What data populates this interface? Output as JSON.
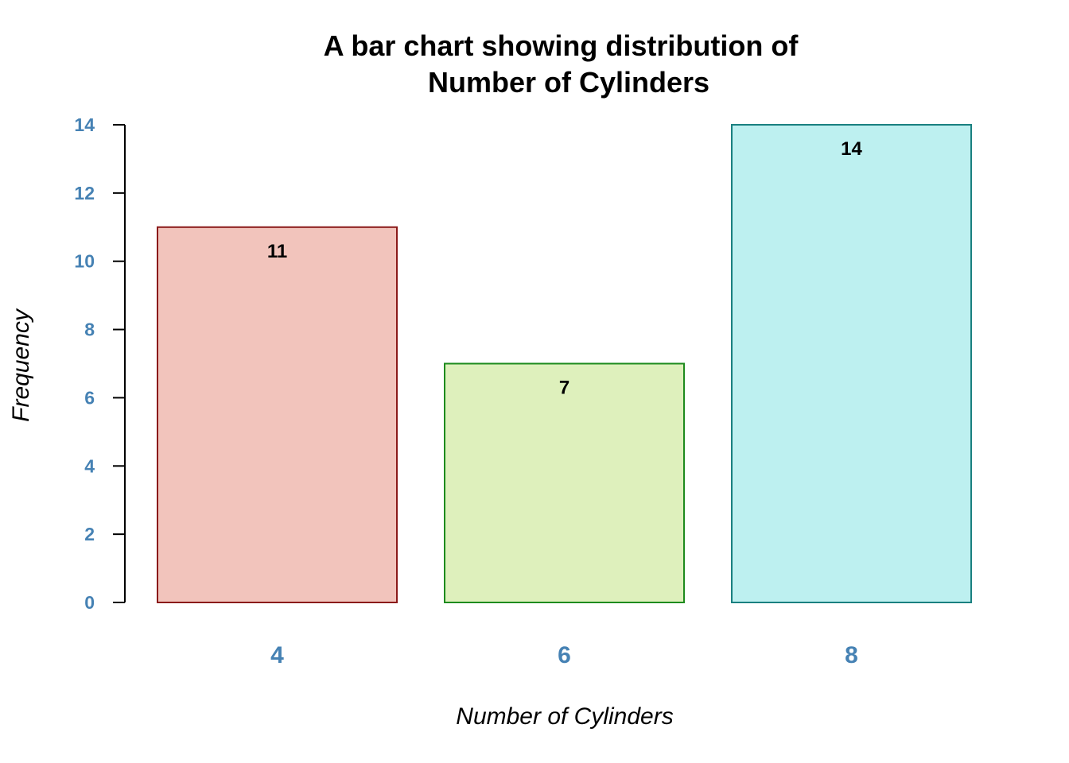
{
  "chart_data": {
    "type": "bar",
    "title_lines": [
      "A bar chart showing distribution of",
      "Number of Cylinders"
    ],
    "xlabel": "Number of Cylinders",
    "ylabel": "Frequency",
    "categories": [
      "4",
      "6",
      "8"
    ],
    "values": [
      11,
      7,
      14
    ],
    "value_labels": [
      "11",
      "7",
      "14"
    ],
    "ylim": [
      0,
      14
    ],
    "y_ticks": [
      0,
      2,
      4,
      6,
      8,
      10,
      12,
      14
    ],
    "y_tick_labels": [
      "0",
      "2",
      "4",
      "6",
      "8",
      "10",
      "12",
      "14"
    ],
    "grid": false,
    "legend": "none",
    "bar_fill_colors": [
      "#F2C4BC",
      "#DEF0BC",
      "#BDF0F0"
    ],
    "bar_border_colors": [
      "#8B1A1A",
      "#1E8B1E",
      "#1A8080"
    ],
    "tick_label_color": "#4682B4",
    "axis_color": "#000000"
  }
}
